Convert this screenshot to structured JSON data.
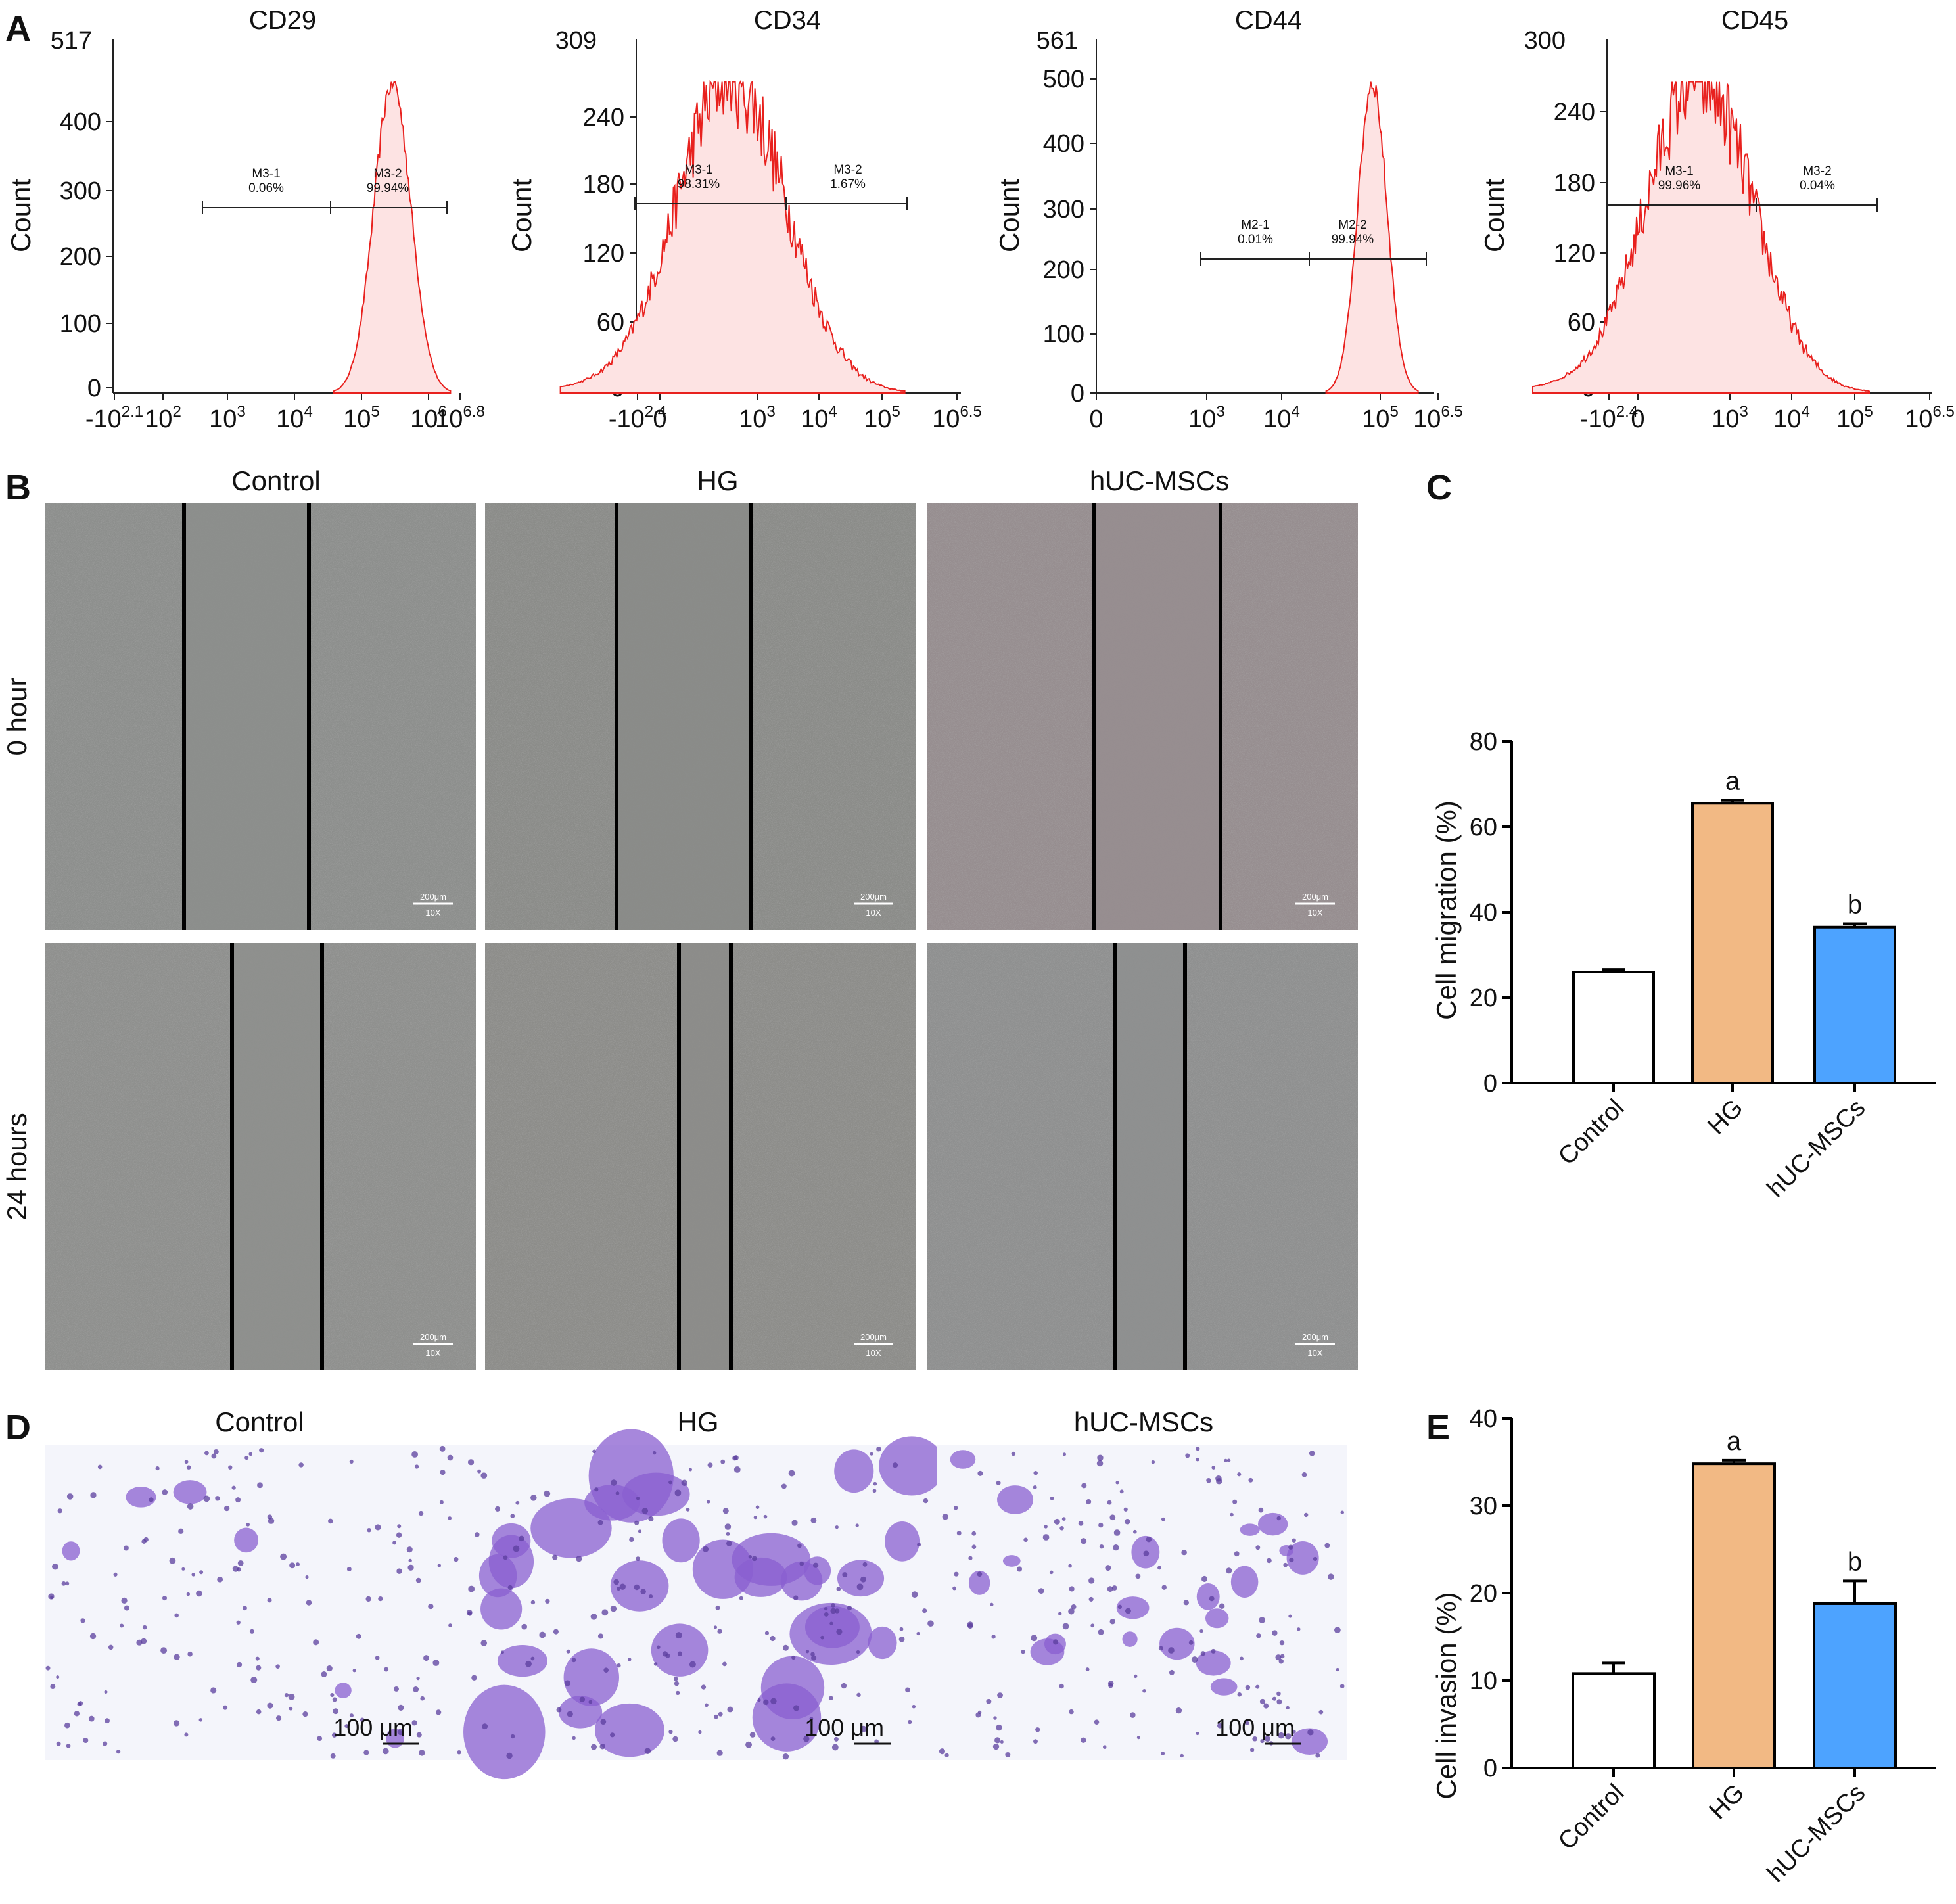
{
  "panel_labels": {
    "A": "A",
    "B": "B",
    "C": "C",
    "D": "D",
    "E": "E"
  },
  "colors": {
    "hist_line": "#e8211e",
    "hist_fill": "#fde3e3",
    "control_bar": "#ffffff",
    "hg_bar": "#f2b984",
    "msc_bar": "#4da3ff",
    "scratch_line": "#000000",
    "crystal_violet": "#8a5fd0"
  },
  "flow": [
    {
      "title": "CD29",
      "ylabel": "Count",
      "ymax_label": "517",
      "yticks": [
        "400",
        "300",
        "200",
        "100",
        "0"
      ],
      "xticks": [
        {
          "base": "-10",
          "exp": "2.1"
        },
        {
          "base": "10",
          "exp": "2"
        },
        {
          "base": "10",
          "exp": "3"
        },
        {
          "base": "10",
          "exp": "4"
        },
        {
          "base": "10",
          "exp": "5"
        },
        {
          "base": "10",
          "exp": "6"
        },
        {
          "base": "10",
          "exp": "6.8"
        }
      ],
      "gates": [
        {
          "name": "M3-1",
          "pct": "0.06%"
        },
        {
          "name": "M3-2",
          "pct": "99.94%"
        }
      ]
    },
    {
      "title": "CD34",
      "ylabel": "Count",
      "ymax_label": "309",
      "yticks": [
        "240",
        "180",
        "120",
        "60",
        "0"
      ],
      "xticks": [
        {
          "base": "-10",
          "exp": "2.4"
        },
        {
          "base": "0",
          "exp": ""
        },
        {
          "base": "10",
          "exp": "3"
        },
        {
          "base": "10",
          "exp": "4"
        },
        {
          "base": "10",
          "exp": "5"
        },
        {
          "base": "10",
          "exp": "6.5"
        }
      ],
      "gates": [
        {
          "name": "M3-1",
          "pct": "98.31%"
        },
        {
          "name": "M3-2",
          "pct": "1.67%"
        }
      ]
    },
    {
      "title": "CD44",
      "ylabel": "Count",
      "ymax_label": "561",
      "yticks": [
        "500",
        "400",
        "300",
        "200",
        "100",
        "0"
      ],
      "xticks": [
        {
          "base": "0",
          "exp": ""
        },
        {
          "base": "10",
          "exp": "3"
        },
        {
          "base": "10",
          "exp": "4"
        },
        {
          "base": "10",
          "exp": "5"
        },
        {
          "base": "10",
          "exp": "6.5"
        }
      ],
      "gates": [
        {
          "name": "M2-1",
          "pct": "0.01%"
        },
        {
          "name": "M2-2",
          "pct": "99.94%"
        }
      ]
    },
    {
      "title": "CD45",
      "ylabel": "Count",
      "ymax_label": "300",
      "yticks": [
        "240",
        "180",
        "120",
        "60",
        "0"
      ],
      "xticks": [
        {
          "base": "-10",
          "exp": "2.4"
        },
        {
          "base": "0",
          "exp": ""
        },
        {
          "base": "10",
          "exp": "3"
        },
        {
          "base": "10",
          "exp": "4"
        },
        {
          "base": "10",
          "exp": "5"
        },
        {
          "base": "10",
          "exp": "6.5"
        }
      ],
      "gates": [
        {
          "name": "M3-1",
          "pct": "99.96%"
        },
        {
          "name": "M3-2",
          "pct": "0.04%"
        }
      ]
    }
  ],
  "scratch": {
    "columns": [
      "Control",
      "HG",
      "hUC-MSCs"
    ],
    "rows": [
      "0 hour",
      "24 hours"
    ],
    "scale_bar": "200μm",
    "magnification": "10X"
  },
  "transwell": {
    "columns": [
      "Control",
      "HG",
      "hUC-MSCs"
    ],
    "scale_bar": "100 μm"
  },
  "chart_data": [
    {
      "type": "bar",
      "panel": "C",
      "categories": [
        "Control",
        "HG",
        "hUC-MSCs"
      ],
      "values": [
        26,
        65.5,
        36.5
      ],
      "errors": [
        0.6,
        0.7,
        0.8
      ],
      "annotations": [
        "",
        "a",
        "b"
      ],
      "ylabel": "Cell migration (%)",
      "ylim": [
        0,
        80
      ],
      "yticks": [
        "0",
        "20",
        "40",
        "60",
        "80"
      ]
    },
    {
      "type": "bar",
      "panel": "E",
      "categories": [
        "Control",
        "HG",
        "hUC-MSCs"
      ],
      "values": [
        10.8,
        34.8,
        18.8
      ],
      "errors": [
        1.2,
        0.4,
        2.6
      ],
      "annotations": [
        "",
        "a",
        "b"
      ],
      "ylabel": "Cell invasion (%)",
      "ylim": [
        0,
        40
      ],
      "yticks": [
        "0",
        "10",
        "20",
        "30",
        "40"
      ]
    }
  ]
}
